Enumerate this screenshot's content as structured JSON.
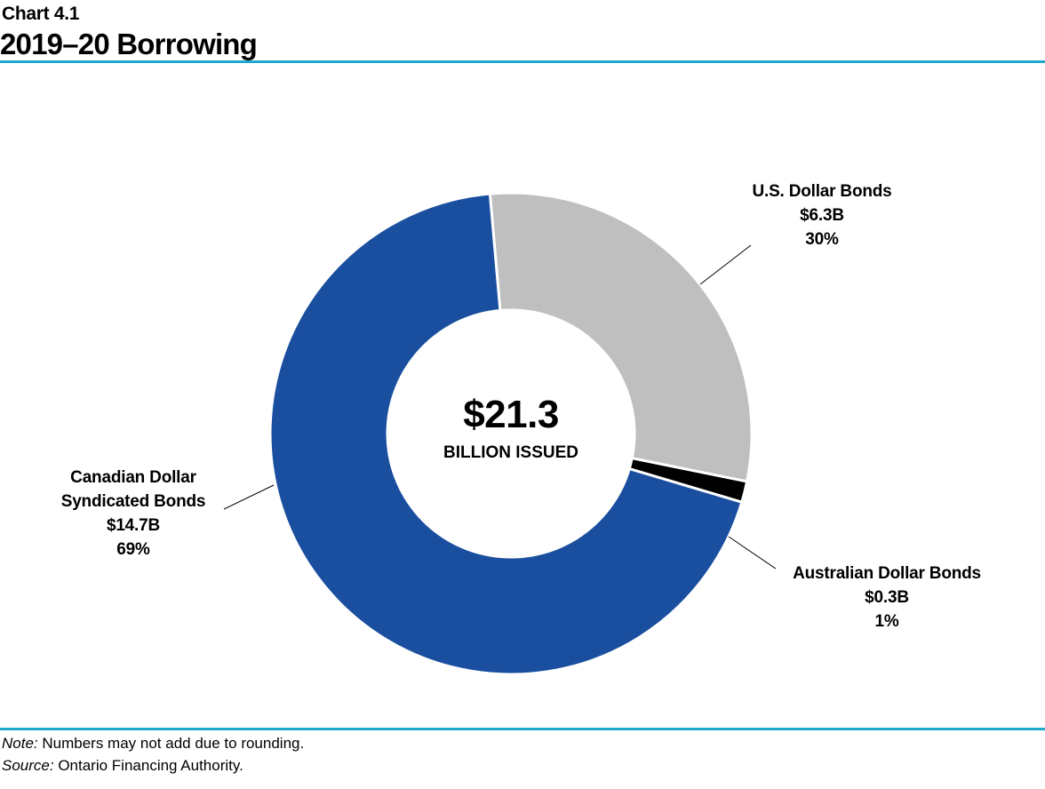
{
  "header": {
    "chart_label": "Chart 4.1",
    "title": "2019–20 Borrowing"
  },
  "colors": {
    "rule": "#1ea8cc",
    "cad": "#1a4fa0",
    "us": "#bfbfbf",
    "aud": "#000000",
    "separator": "#ffffff",
    "leader": "#000000"
  },
  "center": {
    "value": "$21.3",
    "text": "BILLION ISSUED"
  },
  "labels": {
    "us": {
      "name": "U.S. Dollar Bonds",
      "amount": "$6.3B",
      "percent": "30%"
    },
    "aud": {
      "name": "Australian Dollar Bonds",
      "amount": "$0.3B",
      "percent": "1%"
    },
    "cad": {
      "name_line1": "Canadian Dollar",
      "name_line2": "Syndicated Bonds",
      "amount": "$14.7B",
      "percent": "69%"
    }
  },
  "footer": {
    "note_label": "Note:",
    "note": " Numbers may not add due to rounding.",
    "source_label": "Source:",
    "source": " Ontario Financing Authority."
  },
  "chart_data": {
    "type": "pie",
    "style": "donut",
    "unit": "$ billions",
    "title": "2019–20 Borrowing",
    "total": 21.3,
    "slices": [
      {
        "label": "U.S. Dollar Bonds",
        "value": 6.3,
        "percent": 30,
        "color": "#bfbfbf"
      },
      {
        "label": "Australian Dollar Bonds",
        "value": 0.3,
        "percent": 1,
        "color": "#000000"
      },
      {
        "label": "Canadian Dollar Syndicated Bonds",
        "value": 14.7,
        "percent": 69,
        "color": "#1a4fa0"
      }
    ]
  }
}
